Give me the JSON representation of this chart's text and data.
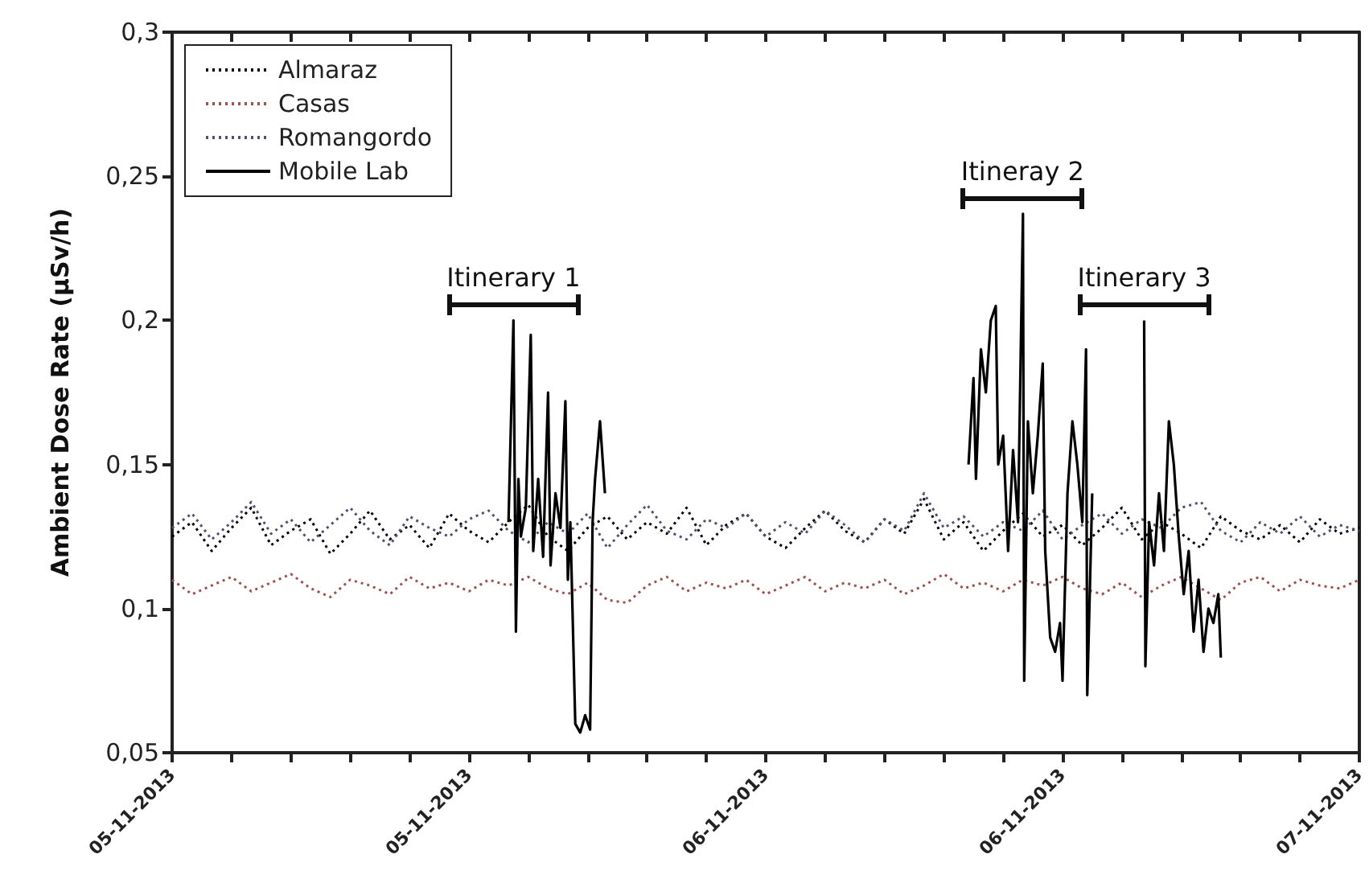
{
  "chart_data": {
    "type": "line",
    "ylabel": "Ambient Dose Rate (µSv/h)",
    "xlim": [
      "2013-11-05T00:00",
      "2013-11-07T00:00"
    ],
    "xticks": [
      {
        "value": "2013-11-05T00:00",
        "label": "05-11-2013"
      },
      {
        "value": "2013-11-05T02:24",
        "label": null
      },
      {
        "value": "2013-11-05T04:48",
        "label": null
      },
      {
        "value": "2013-11-05T07:12",
        "label": null
      },
      {
        "value": "2013-11-05T09:36",
        "label": null
      },
      {
        "value": "2013-11-05T12:00",
        "label": "05-11-2013"
      },
      {
        "value": "2013-11-05T14:24",
        "label": null
      },
      {
        "value": "2013-11-05T16:48",
        "label": null
      },
      {
        "value": "2013-11-05T19:12",
        "label": null
      },
      {
        "value": "2013-11-05T21:36",
        "label": null
      },
      {
        "value": "2013-11-06T00:00",
        "label": "06-11-2013"
      },
      {
        "value": "2013-11-06T02:24",
        "label": null
      },
      {
        "value": "2013-11-06T04:48",
        "label": null
      },
      {
        "value": "2013-11-06T07:12",
        "label": null
      },
      {
        "value": "2013-11-06T09:36",
        "label": null
      },
      {
        "value": "2013-11-06T12:00",
        "label": "06-11-2013"
      },
      {
        "value": "2013-11-06T14:24",
        "label": null
      },
      {
        "value": "2013-11-06T16:48",
        "label": null
      },
      {
        "value": "2013-11-06T19:12",
        "label": null
      },
      {
        "value": "2013-11-06T21:36",
        "label": null
      },
      {
        "value": "2013-11-07T00:00",
        "label": "07-11-2013"
      }
    ],
    "ylim": [
      0.05,
      0.3
    ],
    "yticks": [
      {
        "value": 0.05,
        "label": "0,05"
      },
      {
        "value": 0.1,
        "label": "0,1"
      },
      {
        "value": 0.15,
        "label": "0,15"
      },
      {
        "value": 0.2,
        "label": "0,2"
      },
      {
        "value": 0.25,
        "label": "0,25"
      },
      {
        "value": 0.3,
        "label": "0,3"
      }
    ],
    "grid": false,
    "legend": "top left",
    "marker": "none",
    "annotations": [
      {
        "text": "Itinerary 1",
        "x": "2013-11-05T13:48",
        "y": 0.2
      },
      {
        "text": "Itineray 2",
        "x": "2013-11-06T10:24",
        "y": 0.237
      },
      {
        "text": "Itinerary 3",
        "x": "2013-11-06T15:18",
        "y": 0.2
      }
    ],
    "x": [
      "2013-11-05T00:00",
      "2013-11-05T00:48",
      "2013-11-05T01:36",
      "2013-11-05T02:24",
      "2013-11-05T03:12",
      "2013-11-05T04:00",
      "2013-11-05T04:48",
      "2013-11-05T05:36",
      "2013-11-05T06:24",
      "2013-11-05T07:12",
      "2013-11-05T08:00",
      "2013-11-05T08:48",
      "2013-11-05T09:36",
      "2013-11-05T10:24",
      "2013-11-05T11:12",
      "2013-11-05T12:00",
      "2013-11-05T12:48",
      "2013-11-05T13:36",
      "2013-11-05T14:24",
      "2013-11-05T15:12",
      "2013-11-05T16:00",
      "2013-11-05T16:48",
      "2013-11-05T17:36",
      "2013-11-05T18:24",
      "2013-11-05T19:12",
      "2013-11-05T20:00",
      "2013-11-05T20:48",
      "2013-11-05T21:36",
      "2013-11-05T22:24",
      "2013-11-05T23:12",
      "2013-11-06T00:00",
      "2013-11-06T00:48",
      "2013-11-06T01:36",
      "2013-11-06T02:24",
      "2013-11-06T03:12",
      "2013-11-06T04:00",
      "2013-11-06T04:48",
      "2013-11-06T05:36",
      "2013-11-06T06:24",
      "2013-11-06T07:12",
      "2013-11-06T08:00",
      "2013-11-06T08:48",
      "2013-11-06T09:36",
      "2013-11-06T10:24",
      "2013-11-06T11:12",
      "2013-11-06T12:00",
      "2013-11-06T12:48",
      "2013-11-06T13:36",
      "2013-11-06T14:24",
      "2013-11-06T15:12",
      "2013-11-06T16:00",
      "2013-11-06T16:48",
      "2013-11-06T17:36",
      "2013-11-06T18:24",
      "2013-11-06T19:12",
      "2013-11-06T20:00",
      "2013-11-06T20:48",
      "2013-11-06T21:36",
      "2013-11-06T22:24",
      "2013-11-06T23:12",
      "2013-11-07T00:00"
    ],
    "series": [
      {
        "name": "Almaraz",
        "color": "#000000",
        "line_style": "dotted",
        "values": [
          0.125,
          0.13,
          0.12,
          0.128,
          0.135,
          0.122,
          0.127,
          0.131,
          0.119,
          0.126,
          0.134,
          0.124,
          0.129,
          0.121,
          0.133,
          0.127,
          0.123,
          0.13,
          0.136,
          0.125,
          0.12,
          0.128,
          0.132,
          0.124,
          0.13,
          0.126,
          0.135,
          0.122,
          0.129,
          0.133,
          0.125,
          0.121,
          0.128,
          0.134,
          0.127,
          0.123,
          0.131,
          0.126,
          0.138,
          0.124,
          0.13,
          0.12,
          0.127,
          0.133,
          0.125,
          0.129,
          0.122,
          0.128,
          0.135,
          0.124,
          0.13,
          0.126,
          0.121,
          0.132,
          0.127,
          0.124,
          0.129,
          0.123,
          0.131,
          0.126,
          0.128
        ]
      },
      {
        "name": "Casas",
        "color": "#a05050",
        "line_style": "dotted",
        "values": [
          0.11,
          0.105,
          0.108,
          0.111,
          0.106,
          0.109,
          0.112,
          0.107,
          0.104,
          0.11,
          0.108,
          0.105,
          0.111,
          0.107,
          0.109,
          0.106,
          0.11,
          0.108,
          0.111,
          0.107,
          0.105,
          0.109,
          0.103,
          0.102,
          0.108,
          0.111,
          0.106,
          0.109,
          0.107,
          0.11,
          0.105,
          0.108,
          0.111,
          0.106,
          0.109,
          0.107,
          0.11,
          0.105,
          0.108,
          0.112,
          0.107,
          0.109,
          0.106,
          0.11,
          0.108,
          0.111,
          0.107,
          0.105,
          0.109,
          0.104,
          0.108,
          0.111,
          0.107,
          0.103,
          0.109,
          0.111,
          0.106,
          0.11,
          0.108,
          0.107,
          0.11
        ]
      },
      {
        "name": "Romangordo",
        "color": "#505070",
        "line_style": "dotted",
        "values": [
          0.128,
          0.133,
          0.124,
          0.13,
          0.137,
          0.126,
          0.131,
          0.123,
          0.129,
          0.135,
          0.127,
          0.122,
          0.132,
          0.128,
          0.125,
          0.131,
          0.134,
          0.127,
          0.123,
          0.13,
          0.126,
          0.133,
          0.121,
          0.129,
          0.136,
          0.127,
          0.124,
          0.131,
          0.128,
          0.133,
          0.125,
          0.13,
          0.126,
          0.134,
          0.129,
          0.123,
          0.131,
          0.127,
          0.14,
          0.128,
          0.132,
          0.125,
          0.13,
          0.127,
          0.134,
          0.124,
          0.129,
          0.133,
          0.126,
          0.131,
          0.128,
          0.135,
          0.137,
          0.127,
          0.123,
          0.13,
          0.126,
          0.132,
          0.125,
          0.129,
          0.127
        ]
      },
      {
        "name": "Mobile Lab",
        "color": "#000000",
        "line_style": "solid",
        "x": [
          "2013-11-05T13:36",
          "2013-11-05T13:48",
          "2013-11-05T13:54",
          "2013-11-05T14:00",
          "2013-11-05T14:06",
          "2013-11-05T14:18",
          "2013-11-05T14:30",
          "2013-11-05T14:36",
          "2013-11-05T14:48",
          "2013-11-05T15:00",
          "2013-11-05T15:12",
          "2013-11-05T15:18",
          "2013-11-05T15:30",
          "2013-11-05T15:42",
          "2013-11-05T15:54",
          "2013-11-05T16:00",
          "2013-11-05T16:06",
          "2013-11-05T16:18",
          "2013-11-05T16:30",
          "2013-11-05T16:42",
          "2013-11-05T16:54",
          "2013-11-05T17:00",
          "2013-11-05T17:06",
          "2013-11-05T17:18",
          "2013-11-05T17:30",
          "2013-11-06T01:00",
          "2013-11-06T08:12",
          "2013-11-06T08:24",
          "2013-11-06T08:30",
          "2013-11-06T08:42",
          "2013-11-06T08:54",
          "2013-11-06T09:06",
          "2013-11-06T09:18",
          "2013-11-06T09:24",
          "2013-11-06T09:36",
          "2013-11-06T09:48",
          "2013-11-06T10:00",
          "2013-11-06T10:12",
          "2013-11-06T10:24",
          "2013-11-06T10:27",
          "2013-11-06T10:36",
          "2013-11-06T10:48",
          "2013-11-06T11:00",
          "2013-11-06T11:12",
          "2013-11-06T11:18",
          "2013-11-06T11:30",
          "2013-11-06T11:42",
          "2013-11-06T11:54",
          "2013-11-06T12:00",
          "2013-11-06T12:12",
          "2013-11-06T12:24",
          "2013-11-06T12:36",
          "2013-11-06T12:48",
          "2013-11-06T12:57",
          "2013-11-06T13:00",
          "2013-11-06T13:12",
          "2013-11-06T14:00",
          "2013-11-06T15:18",
          "2013-11-06T15:21",
          "2013-11-06T15:30",
          "2013-11-06T15:42",
          "2013-11-06T15:54",
          "2013-11-06T16:06",
          "2013-11-06T16:18",
          "2013-11-06T16:30",
          "2013-11-06T16:42",
          "2013-11-06T16:54",
          "2013-11-06T17:06",
          "2013-11-06T17:18",
          "2013-11-06T17:30",
          "2013-11-06T17:42",
          "2013-11-06T17:54",
          "2013-11-06T18:06",
          "2013-11-06T18:18",
          "2013-11-06T18:24"
        ],
        "values": [
          0.13,
          0.2,
          0.092,
          0.145,
          0.125,
          0.135,
          0.195,
          0.12,
          0.145,
          0.118,
          0.175,
          0.115,
          0.14,
          0.128,
          0.172,
          0.11,
          0.13,
          0.06,
          0.057,
          0.063,
          0.058,
          0.13,
          0.145,
          0.165,
          0.14,
          null,
          0.15,
          0.18,
          0.145,
          0.19,
          0.175,
          0.2,
          0.205,
          0.15,
          0.16,
          0.12,
          0.155,
          0.13,
          0.237,
          0.075,
          0.165,
          0.14,
          0.16,
          0.185,
          0.12,
          0.09,
          0.085,
          0.095,
          0.075,
          0.14,
          0.165,
          0.15,
          0.13,
          0.19,
          0.07,
          0.14,
          null,
          0.2,
          0.08,
          0.13,
          0.115,
          0.14,
          0.12,
          0.165,
          0.15,
          0.125,
          0.105,
          0.12,
          0.092,
          0.11,
          0.085,
          0.1,
          0.095,
          0.105,
          0.083
        ]
      }
    ]
  }
}
